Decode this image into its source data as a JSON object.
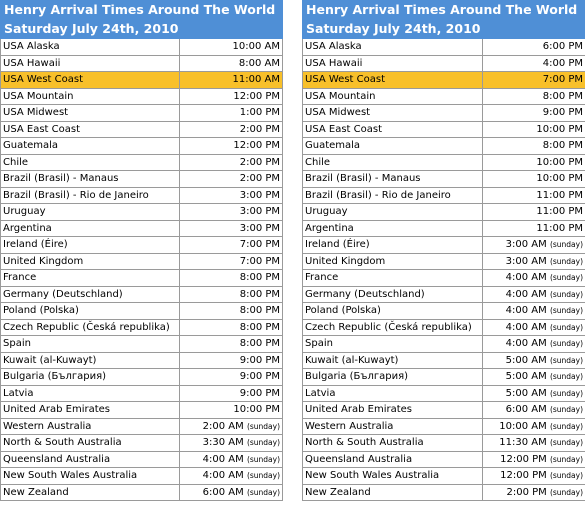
{
  "highlight_color": "#f8c02a",
  "header_color": "#4f8fd6",
  "left": {
    "title": "Henry Arrival Times Around The World",
    "date": "Saturday July 24th, 2010",
    "rows": [
      {
        "location": "USA Alaska",
        "time": "10:00 AM",
        "note": ""
      },
      {
        "location": "USA Hawaii",
        "time": "8:00 AM",
        "note": ""
      },
      {
        "location": "USA West Coast",
        "time": "11:00 AM",
        "note": "",
        "highlight": true
      },
      {
        "location": "USA Mountain",
        "time": "12:00 PM",
        "note": ""
      },
      {
        "location": "USA Midwest",
        "time": "1:00 PM",
        "note": ""
      },
      {
        "location": "USA East Coast",
        "time": "2:00 PM",
        "note": ""
      },
      {
        "location": "Guatemala",
        "time": "12:00 PM",
        "note": ""
      },
      {
        "location": "Chile",
        "time": "2:00 PM",
        "note": ""
      },
      {
        "location": "Brazil (Brasil) - Manaus",
        "time": "2:00 PM",
        "note": ""
      },
      {
        "location": "Brazil (Brasil) - Rio de Janeiro",
        "time": "3:00 PM",
        "note": ""
      },
      {
        "location": "Uruguay",
        "time": "3:00 PM",
        "note": ""
      },
      {
        "location": "Argentina",
        "time": "3:00 PM",
        "note": ""
      },
      {
        "location": "Ireland (Éire)",
        "time": "7:00 PM",
        "note": ""
      },
      {
        "location": "United Kingdom",
        "time": "7:00 PM",
        "note": ""
      },
      {
        "location": "France",
        "time": "8:00 PM",
        "note": ""
      },
      {
        "location": "Germany (Deutschland)",
        "time": "8:00 PM",
        "note": ""
      },
      {
        "location": "Poland (Polska)",
        "time": "8:00 PM",
        "note": ""
      },
      {
        "location": "Czech Republic (Česká republika)",
        "time": "8:00 PM",
        "note": ""
      },
      {
        "location": "Spain",
        "time": "8:00 PM",
        "note": ""
      },
      {
        "location": "Kuwait (al-Kuwayt)",
        "time": "9:00 PM",
        "note": ""
      },
      {
        "location": "Bulgaria (България)",
        "time": "9:00 PM",
        "note": ""
      },
      {
        "location": "Latvia",
        "time": "9:00 PM",
        "note": ""
      },
      {
        "location": "United Arab Emirates",
        "time": "10:00 PM",
        "note": ""
      },
      {
        "location": "Western Australia",
        "time": "2:00 AM",
        "note": "(sunday)"
      },
      {
        "location": "North & South Australia",
        "time": "3:30 AM",
        "note": "(sunday)"
      },
      {
        "location": "Queensland Australia",
        "time": "4:00 AM",
        "note": "(sunday)"
      },
      {
        "location": "New South Wales Australia",
        "time": "4:00 AM",
        "note": "(sunday)"
      },
      {
        "location": "New Zealand",
        "time": "6:00 AM",
        "note": "(sunday)"
      }
    ]
  },
  "right": {
    "title": "Henry Arrival Times Around The World",
    "date": "Saturday July 24th, 2010",
    "rows": [
      {
        "location": "USA Alaska",
        "time": "6:00 PM",
        "note": ""
      },
      {
        "location": "USA Hawaii",
        "time": "4:00 PM",
        "note": ""
      },
      {
        "location": "USA West Coast",
        "time": "7:00 PM",
        "note": "",
        "highlight": true
      },
      {
        "location": "USA Mountain",
        "time": "8:00 PM",
        "note": ""
      },
      {
        "location": "USA Midwest",
        "time": "9:00 PM",
        "note": ""
      },
      {
        "location": "USA East Coast",
        "time": "10:00 PM",
        "note": ""
      },
      {
        "location": "Guatemala",
        "time": "8:00 PM",
        "note": ""
      },
      {
        "location": "Chile",
        "time": "10:00 PM",
        "note": ""
      },
      {
        "location": "Brazil (Brasil) - Manaus",
        "time": "10:00 PM",
        "note": ""
      },
      {
        "location": "Brazil (Brasil) - Rio de Janeiro",
        "time": "11:00 PM",
        "note": ""
      },
      {
        "location": "Uruguay",
        "time": "11:00 PM",
        "note": ""
      },
      {
        "location": "Argentina",
        "time": "11:00 PM",
        "note": ""
      },
      {
        "location": "Ireland (Éire)",
        "time": "3:00 AM",
        "note": "(sunday)"
      },
      {
        "location": "United Kingdom",
        "time": "3:00 AM",
        "note": "(sunday)"
      },
      {
        "location": "France",
        "time": "4:00 AM",
        "note": "(sunday)"
      },
      {
        "location": "Germany (Deutschland)",
        "time": "4:00 AM",
        "note": "(sunday)"
      },
      {
        "location": "Poland (Polska)",
        "time": "4:00 AM",
        "note": "(sunday)"
      },
      {
        "location": "Czech Republic (Česká republika)",
        "time": "4:00 AM",
        "note": "(sunday)"
      },
      {
        "location": "Spain",
        "time": "4:00 AM",
        "note": "(sunday)"
      },
      {
        "location": "Kuwait (al-Kuwayt)",
        "time": "5:00 AM",
        "note": "(sunday)"
      },
      {
        "location": "Bulgaria (България)",
        "time": "5:00 AM",
        "note": "(sunday)"
      },
      {
        "location": "Latvia",
        "time": "5:00 AM",
        "note": "(sunday)"
      },
      {
        "location": "United Arab Emirates",
        "time": "6:00 AM",
        "note": "(sunday)"
      },
      {
        "location": "Western Australia",
        "time": "10:00 AM",
        "note": "(sunday)"
      },
      {
        "location": "North & South Australia",
        "time": "11:30 AM",
        "note": "(sunday)"
      },
      {
        "location": "Queensland Australia",
        "time": "12:00 PM",
        "note": "(sunday)"
      },
      {
        "location": "New South Wales Australia",
        "time": "12:00 PM",
        "note": "(sunday)"
      },
      {
        "location": "New Zealand",
        "time": "2:00 PM",
        "note": "(sunday)"
      }
    ]
  }
}
